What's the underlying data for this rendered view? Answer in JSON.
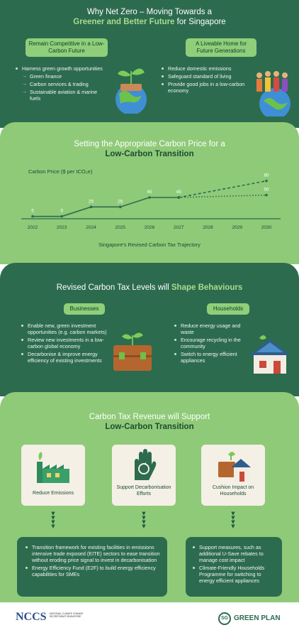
{
  "header": {
    "title_line1": "Why Net Zero – Moving Towards a",
    "title_line2_bold": "Greener and Better Future",
    "title_line2_rest": " for Singapore",
    "left_pill": "Remain Competitive in a Low-Carbon Future",
    "right_pill": "A Liveable Home for Future Generations",
    "left_items": [
      {
        "text": "Harness green growth opportunities",
        "sub": false
      },
      {
        "text": "Green finance",
        "sub": true
      },
      {
        "text": "Carbon services & trading",
        "sub": true
      },
      {
        "text": "Sustainable aviation & marine fuels",
        "sub": true
      }
    ],
    "right_items": [
      "Reduce domestic emissions",
      "Safeguard standard of living",
      "Provide good jobs in a low-carbon economy"
    ]
  },
  "price_section": {
    "title_line1": "Setting the Appropriate Carbon Price for a",
    "title_line2": "Low-Carbon Transition",
    "caption": "Singapore's Revised Carbon Tax Trajectory"
  },
  "chart_data": {
    "type": "line",
    "title": "Carbon Price ($ per tCO₂e)",
    "x": [
      "2022",
      "2023",
      "2024",
      "2025",
      "2026",
      "2027",
      "2028",
      "2029",
      "2030"
    ],
    "series": [
      {
        "values": [
          5,
          5,
          25,
          25,
          45,
          45,
          null,
          null,
          null
        ]
      },
      {
        "values": [
          null,
          null,
          null,
          null,
          null,
          45,
          null,
          null,
          80
        ],
        "style": "dashed"
      },
      {
        "values": [
          null,
          null,
          null,
          null,
          null,
          45,
          null,
          null,
          50
        ],
        "style": "dotted"
      }
    ],
    "data_labels": [
      {
        "x": "2022",
        "y": 5,
        "text": "5"
      },
      {
        "x": "2023",
        "y": 5,
        "text": "5"
      },
      {
        "x": "2024",
        "y": 25,
        "text": "25"
      },
      {
        "x": "2025",
        "y": 25,
        "text": "25"
      },
      {
        "x": "2026",
        "y": 45,
        "text": "45"
      },
      {
        "x": "2027",
        "y": 45,
        "text": "45"
      },
      {
        "x": "2030",
        "y": 80,
        "text": "80"
      },
      {
        "x": "2030",
        "y": 50,
        "text": "50"
      }
    ],
    "ylim": [
      0,
      90
    ],
    "grid": false,
    "line_color": "#2d6b4f"
  },
  "behaviour": {
    "title_plain": "Revised Carbon Tax Levels will ",
    "title_bold": "Shape Behaviours",
    "businesses_label": "Businesses",
    "households_label": "Households",
    "business_items": [
      "Enable new, green investment opportunities (e.g. carbon markets)",
      "Review new investments in a low-carbon global economy",
      "Decarbonise & improve energy efficiency of existing investments"
    ],
    "household_items": [
      "Reduce energy usage and waste",
      "Encourage recycling in the community",
      "Switch to energy efficient appliances"
    ]
  },
  "revenue": {
    "title_line1": "Carbon Tax Revenue will Support",
    "title_line2": "Low-Carbon Transition",
    "cards": [
      "Reduce Emissions",
      "Support Decarbonisation Efforts",
      "Cushion Impact on Households"
    ],
    "left_box_items": [
      "Transition framework for existing facilities in emissions intensive trade exposed (EITE) sectors to ease transition without eroding price signal to invest in decarbonisation",
      "Energy Efficiency Fund (E2F) to build energy efficiency capabilities for SMEs"
    ],
    "right_box_items": [
      "Support measures, such as additional U-Save rebates to manage cost impact",
      "Climate-Friendly Households Programme for switching to energy efficient appliances"
    ]
  },
  "footer": {
    "nccs_logo": "NCCS",
    "nccs_sub": "NATIONAL CLIMATE CHANGE SECRETARIAT SINGAPORE",
    "sg_badge": "SG",
    "green_plan": "GREEN PLAN"
  },
  "colors": {
    "dark_green": "#2d6b4f",
    "light_green": "#8fca78",
    "pill_green": "#8fcf7a",
    "cream": "#f4f0e6"
  }
}
